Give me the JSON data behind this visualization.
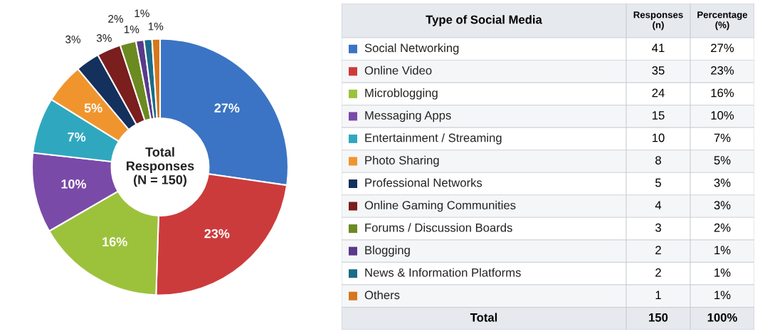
{
  "chart_data": [
    {
      "type": "donut",
      "categories": [
        "Social Networking",
        "Online Video",
        "Microblogging",
        "Messaging Apps",
        "Entertainment / Streaming",
        "Photo Sharing",
        "Professional Networks",
        "Online Gaming Communities",
        "Forums / Discussion Boards",
        "Blogging",
        "News & Information Platforms",
        "Others"
      ],
      "values": [
        27,
        23,
        16,
        10,
        7,
        5,
        3,
        3,
        2,
        1,
        1,
        1
      ],
      "colors": [
        "#3b74c4",
        "#cc3b3b",
        "#9cc23c",
        "#7a4aa8",
        "#2fa8bf",
        "#f0952e",
        "#14305c",
        "#7a1e1e",
        "#6b8a22",
        "#5a3a8a",
        "#1b6c88",
        "#d6771d"
      ],
      "value_labels": [
        "27%",
        "23%",
        "16%",
        "10%",
        "7%",
        "5%",
        "3%",
        "3%",
        "2%",
        "1%",
        "1%",
        "1%"
      ],
      "legend": "right",
      "legend_title": "Type of Social Media",
      "annotations": [
        "Total\nResponses\n(N = 150)"
      ]
    },
    {
      "type": "other",
      "values": [
        41,
        35,
        24,
        15,
        10,
        8,
        5,
        4,
        3,
        2,
        2,
        1
      ],
      "data_labels": true,
      "annotations": [
        "Responses\n(n)",
        "Percentage\n(%)",
        "Total",
        "150",
        "100%"
      ]
    }
  ]
}
